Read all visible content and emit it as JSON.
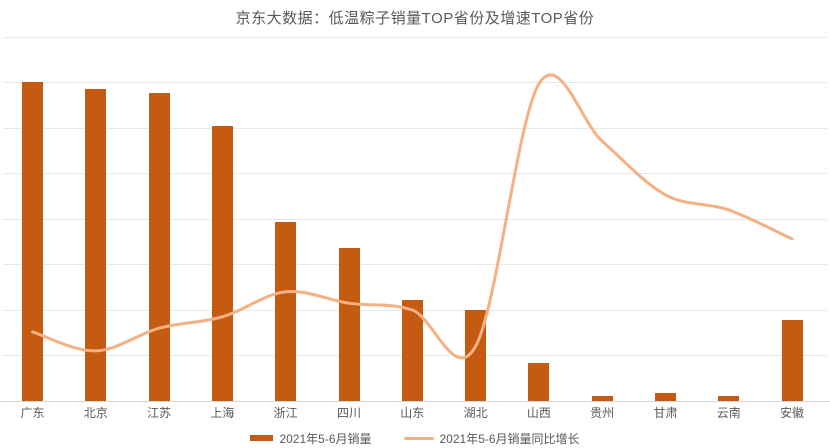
{
  "title": "京东大数据：低温粽子销量TOP省份及增速TOP省份",
  "colors": {
    "bar": "#C55A11",
    "line": "#F4B183",
    "grid": "#E9E9E9",
    "axis": "#D6D6D6",
    "text": "#595959"
  },
  "legend": [
    {
      "label": "2021年5-6月销量",
      "type": "bar"
    },
    {
      "label": "2021年5-6月销量同比增长",
      "type": "line"
    }
  ],
  "chart_data": {
    "type": "combo_bar_line",
    "title": "京东大数据：低温粽子销量TOP省份及增速TOP省份",
    "categories": [
      "广东",
      "北京",
      "江苏",
      "上海",
      "浙江",
      "四川",
      "山东",
      "湖北",
      "山西",
      "贵州",
      "甘肃",
      "云南",
      "安徽"
    ],
    "series": [
      {
        "name": "2021年5-6月销量",
        "type": "bar",
        "values": [
          7.02,
          6.86,
          6.76,
          6.04,
          3.93,
          3.36,
          2.22,
          2.0,
          0.84,
          0.11,
          0.18,
          0.11,
          1.78
        ]
      },
      {
        "name": "2021年5-6月销量同比增长",
        "type": "line",
        "values": [
          1.52,
          1.1,
          1.6,
          1.85,
          2.4,
          2.15,
          2.0,
          1.2,
          6.97,
          5.71,
          4.53,
          4.2,
          3.56
        ]
      }
    ],
    "xlabel": "",
    "ylabel": "",
    "ylim": [
      0,
      8
    ],
    "y_gridline_step": 1,
    "grid": "horizontal",
    "y_axis_labels_visible": false,
    "legend_position": "bottom",
    "note": "No numeric y-axis labels are shown in the chart; values are estimated in gridline units (baseline = 0, one horizontal gridline = 1 unit, top gridline = 8)."
  }
}
